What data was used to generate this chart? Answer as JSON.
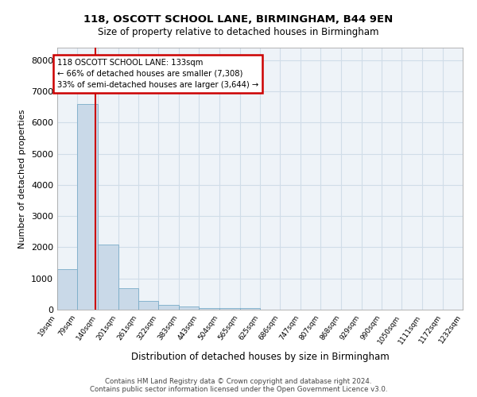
{
  "title1": "118, OSCOTT SCHOOL LANE, BIRMINGHAM, B44 9EN",
  "title2": "Size of property relative to detached houses in Birmingham",
  "xlabel": "Distribution of detached houses by size in Birmingham",
  "ylabel": "Number of detached properties",
  "footer1": "Contains HM Land Registry data © Crown copyright and database right 2024.",
  "footer2": "Contains public sector information licensed under the Open Government Licence v3.0.",
  "bar_edges": [
    19,
    79,
    140,
    201,
    261,
    322,
    383,
    443,
    504,
    565,
    625,
    686,
    747,
    807,
    868,
    929,
    990,
    1050,
    1111,
    1172,
    1232
  ],
  "bar_heights": [
    1300,
    6600,
    2100,
    680,
    280,
    150,
    90,
    60,
    55,
    50,
    0,
    0,
    0,
    0,
    0,
    0,
    0,
    0,
    0,
    0
  ],
  "bar_color": "#c9d9e8",
  "bar_edge_color": "#7aacc8",
  "grid_color": "#d0dde8",
  "background_color": "#eef3f8",
  "vline_x": 133,
  "vline_color": "#cc0000",
  "annotation_line1": "118 OSCOTT SCHOOL LANE: 133sqm",
  "annotation_line2": "← 66% of detached houses are smaller (7,308)",
  "annotation_line3": "33% of semi-detached houses are larger (3,644) →",
  "annotation_box_color": "#cc0000",
  "ylim": [
    0,
    8400
  ],
  "yticks": [
    0,
    1000,
    2000,
    3000,
    4000,
    5000,
    6000,
    7000,
    8000
  ],
  "property_sqm": 133
}
